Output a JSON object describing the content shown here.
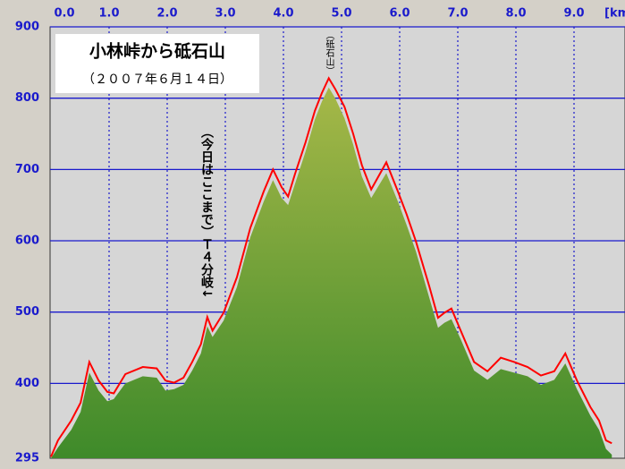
{
  "chart_data": {
    "type": "area",
    "title": "小林峠から砥石山",
    "subtitle": "（２００７年６月１４日）",
    "x_label": "[km",
    "annotations": [
      "（今日はここまで）Ｔ４分岐↓",
      "（砥石山）"
    ],
    "x": [
      0,
      0.12,
      0.35,
      0.51,
      0.66,
      0.82,
      0.97,
      1.08,
      1.28,
      1.58,
      1.82,
      1.97,
      2.12,
      2.28,
      2.43,
      2.58,
      2.69,
      2.78,
      2.97,
      3.2,
      3.43,
      3.66,
      3.82,
      3.97,
      4.08,
      4.2,
      4.38,
      4.54,
      4.66,
      4.78,
      4.89,
      5.05,
      5.2,
      5.35,
      5.51,
      5.77,
      5.97,
      6.12,
      6.28,
      6.51,
      6.66,
      6.77,
      6.89,
      7.05,
      7.28,
      7.51,
      7.74,
      7.97,
      8.2,
      8.43,
      8.66,
      8.85,
      9.05,
      9.28,
      9.43,
      9.55,
      9.65
    ],
    "series": [
      {
        "style": "area",
        "color": "#5f9a34",
        "values": [
          295,
          310,
          335,
          360,
          415,
          390,
          375,
          378,
          400,
          410,
          408,
          390,
          392,
          398,
          418,
          442,
          480,
          465,
          488,
          535,
          605,
          655,
          685,
          660,
          650,
          680,
          725,
          770,
          795,
          815,
          800,
          772,
          735,
          690,
          660,
          695,
          655,
          622,
          585,
          520,
          478,
          485,
          490,
          462,
          418,
          405,
          420,
          415,
          410,
          398,
          405,
          428,
          392,
          355,
          335,
          308,
          300
        ]
      },
      {
        "style": "line",
        "color": "#ff0000",
        "values": [
          297,
          320,
          348,
          373,
          430,
          404,
          388,
          386,
          413,
          423,
          421,
          404,
          401,
          408,
          430,
          455,
          493,
          474,
          499,
          549,
          618,
          669,
          700,
          675,
          662,
          694,
          738,
          782,
          807,
          828,
          813,
          788,
          750,
          706,
          672,
          710,
          669,
          637,
          599,
          536,
          492,
          499,
          505,
          474,
          430,
          417,
          436,
          430,
          423,
          411,
          417,
          442,
          404,
          367,
          348,
          320,
          316
        ]
      }
    ],
    "xlim": [
      0,
      9.88
    ],
    "ylim": [
      295,
      900
    ],
    "xticks": [
      {
        "value": 0,
        "label": "0.0"
      },
      {
        "value": 1,
        "label": "1.0"
      },
      {
        "value": 2,
        "label": "2.0"
      },
      {
        "value": 3,
        "label": "3.0"
      },
      {
        "value": 4,
        "label": "4.0"
      },
      {
        "value": 5,
        "label": "5.0"
      },
      {
        "value": 6,
        "label": "6.0"
      },
      {
        "value": 7,
        "label": "7.0"
      },
      {
        "value": 8,
        "label": "8.0"
      },
      {
        "value": 9,
        "label": "9.0"
      }
    ],
    "yticks": [
      295,
      400,
      500,
      600,
      700,
      800,
      900
    ],
    "grid": true
  }
}
